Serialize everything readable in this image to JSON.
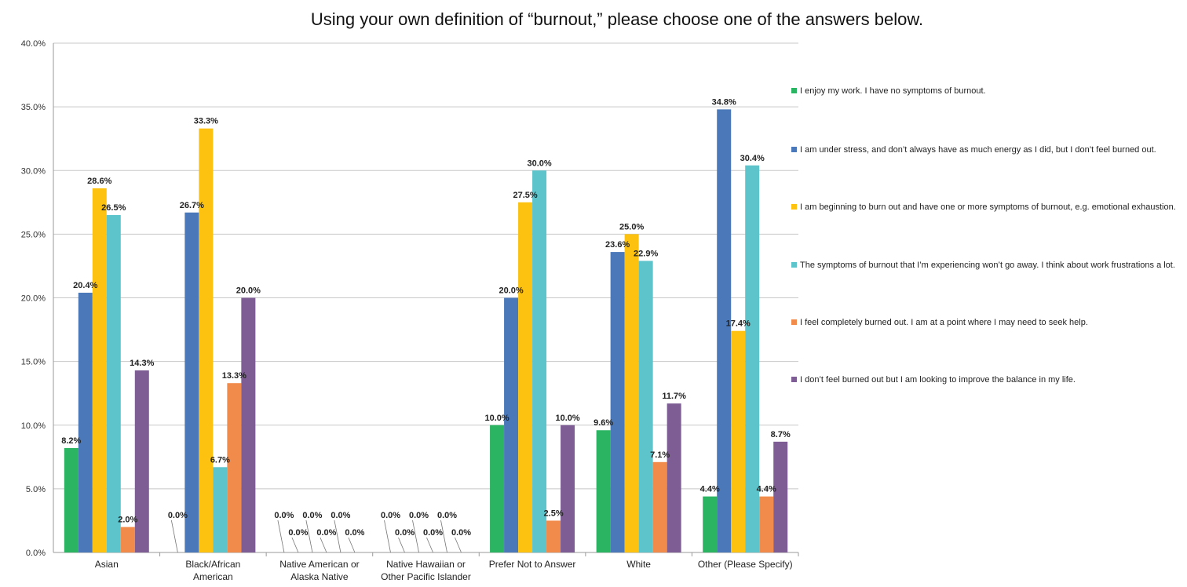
{
  "chart_data": {
    "type": "bar",
    "title": "Using your own definition of “burnout,” please choose one of the answers below.",
    "xlabel": "",
    "ylabel": "",
    "ylim": [
      0,
      40
    ],
    "yticks": [
      "0.0%",
      "5.0%",
      "10.0%",
      "15.0%",
      "20.0%",
      "25.0%",
      "30.0%",
      "35.0%",
      "40.0%"
    ],
    "grid": true,
    "legend_position": "right",
    "categories": [
      [
        "Asian"
      ],
      [
        "Black/African",
        "American"
      ],
      [
        "Native American or",
        "Alaska Native"
      ],
      [
        "Native Hawaiian or",
        "Other Pacific Islander"
      ],
      [
        "Prefer Not to Answer"
      ],
      [
        "White"
      ],
      [
        "Other (Please Specify)"
      ]
    ],
    "series": [
      {
        "name": "I enjoy my work. I have no symptoms of burnout.",
        "color": "#2bb462",
        "values": [
          8.2,
          0.0,
          0.0,
          0.0,
          10.0,
          9.6,
          4.4
        ],
        "labels": [
          "8.2%",
          "0.0%",
          "0.0%",
          "0.0%",
          "10.0%",
          "9.6%",
          "4.4%"
        ]
      },
      {
        "name": "I am under stress, and don’t always have as much energy as I did, but I don’t feel burned out.",
        "color": "#4a78b8",
        "values": [
          20.4,
          26.7,
          0.0,
          0.0,
          20.0,
          23.6,
          34.8
        ],
        "labels": [
          "20.4%",
          "26.7%",
          "0.0%",
          "0.0%",
          "20.0%",
          "23.6%",
          "34.8%"
        ]
      },
      {
        "name": "I am beginning to burn out and have one or more symptoms of burnout, e.g. emotional exhaustion.",
        "color": "#fcc20f",
        "values": [
          28.6,
          33.3,
          0.0,
          0.0,
          27.5,
          25.0,
          17.4
        ],
        "labels": [
          "28.6%",
          "33.3%",
          "0.0%",
          "0.0%",
          "27.5%",
          "25.0%",
          "17.4%"
        ]
      },
      {
        "name": "The symptoms of burnout that I’m experiencing won’t go away. I think about work frustrations a lot.",
        "color": "#5dc4cc",
        "values": [
          26.5,
          6.7,
          0.0,
          0.0,
          30.0,
          22.9,
          30.4
        ],
        "labels": [
          "26.5%",
          "6.7%",
          "0.0%",
          "0.0%",
          "30.0%",
          "22.9%",
          "30.4%"
        ]
      },
      {
        "name": "I feel completely burned out. I am at a point where I may need to seek help.",
        "color": "#f18b4b",
        "values": [
          2.0,
          13.3,
          0.0,
          0.0,
          2.5,
          7.1,
          4.4
        ],
        "labels": [
          "2.0%",
          "13.3%",
          "0.0%",
          "0.0%",
          "2.5%",
          "7.1%",
          "4.4%"
        ]
      },
      {
        "name": "I don’t feel burned out but I am looking to improve the balance in my life.",
        "color": "#7d5d94",
        "values": [
          14.3,
          20.0,
          0.0,
          0.0,
          10.0,
          11.7,
          8.7
        ],
        "labels": [
          "14.3%",
          "20.0%",
          "0.0%",
          "0.0%",
          "10.0%",
          "11.7%",
          "8.7%"
        ]
      }
    ]
  }
}
